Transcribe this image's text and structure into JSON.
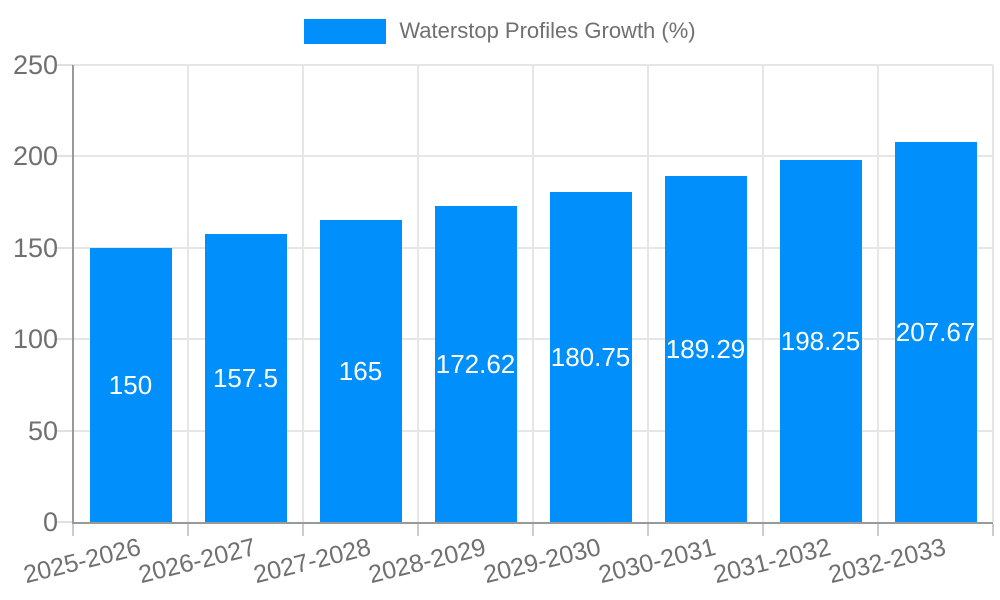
{
  "legend": {
    "series_label": "Waterstop Profiles Growth (%)"
  },
  "chart_data": {
    "type": "bar",
    "title": "Waterstop Profiles Growth (%)",
    "categories": [
      "2025-2026",
      "2026-2027",
      "2027-2028",
      "2028-2029",
      "2029-2030",
      "2030-2031",
      "2031-2032",
      "2032-2033"
    ],
    "values": [
      150,
      157.5,
      165,
      172.62,
      180.75,
      189.29,
      198.25,
      207.67
    ],
    "value_labels": [
      "150",
      "157.5",
      "165",
      "172.62",
      "180.75",
      "189.29",
      "198.25",
      "207.67"
    ],
    "xlabel": "",
    "ylabel": "",
    "ylim": [
      0,
      250
    ],
    "yticks": [
      0,
      50,
      100,
      150,
      200,
      250
    ],
    "grid": true,
    "legend_position": "top",
    "colors": {
      "bar": "#008FFB",
      "bar_value_text": "#ffffff",
      "axis_text": "#707070",
      "gridline": "#e6e6e6",
      "axis_line": "#999999",
      "tick": "#cccccc"
    }
  }
}
